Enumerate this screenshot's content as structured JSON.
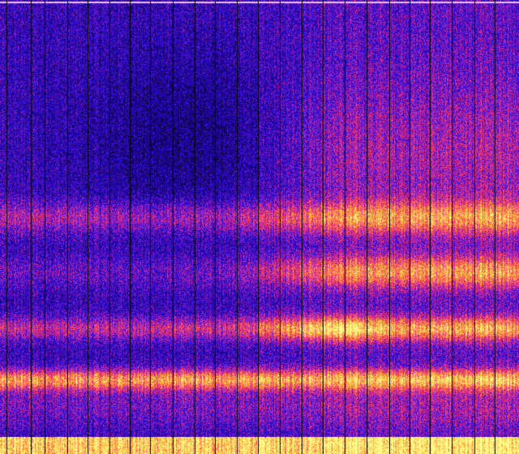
{
  "image": {
    "kind": "spectrogram",
    "colormap": [
      "#000000",
      "#1a0080",
      "#2a10e0",
      "#b020b0",
      "#ff4060",
      "#ffb030",
      "#ffff90"
    ],
    "top_edge_color": "#f0c0e0",
    "gridline_color": "#000000"
  }
}
